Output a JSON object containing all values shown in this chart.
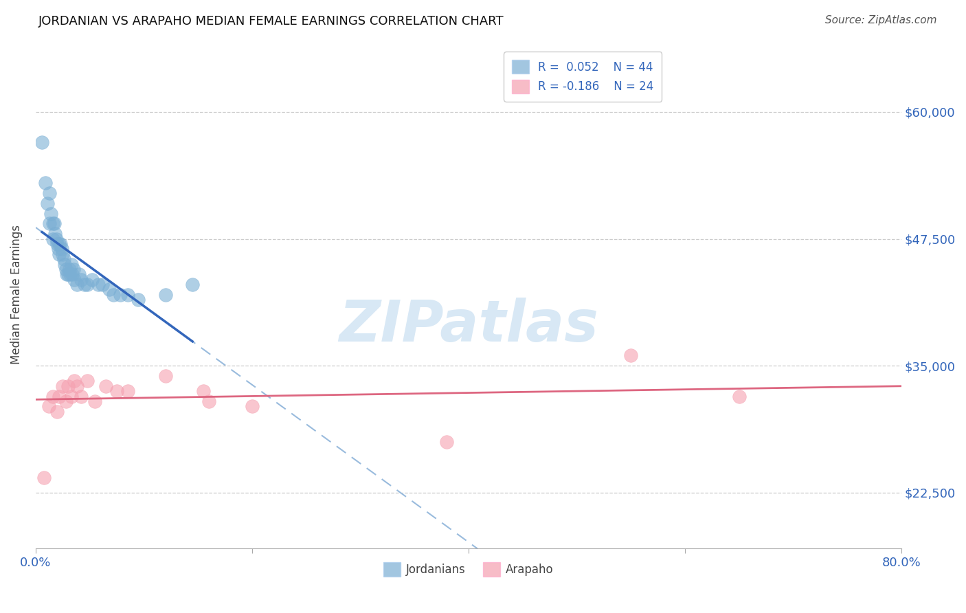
{
  "title": "JORDANIAN VS ARAPAHO MEDIAN FEMALE EARNINGS CORRELATION CHART",
  "source": "Source: ZipAtlas.com",
  "ylabel": "Median Female Earnings",
  "xlim": [
    0.0,
    0.8
  ],
  "ylim": [
    17000,
    67000
  ],
  "yticks": [
    22500,
    35000,
    47500,
    60000
  ],
  "ytick_labels": [
    "$22,500",
    "$35,000",
    "$47,500",
    "$60,000"
  ],
  "xticks": [
    0.0,
    0.2,
    0.4,
    0.6,
    0.8
  ],
  "xtick_labels": [
    "0.0%",
    "",
    "",
    "",
    "80.0%"
  ],
  "legend_r1": "R =  0.052",
  "legend_n1": "N = 44",
  "legend_r2": "R = -0.186",
  "legend_n2": "N = 24",
  "blue_color": "#7BAFD4",
  "pink_color": "#F5A0B0",
  "trend_blue_solid_color": "#3366BB",
  "trend_blue_dashed_color": "#99BBDD",
  "trend_pink_color": "#DD6680",
  "watermark_color": "#D8E8F5",
  "jordanian_x": [
    0.006,
    0.009,
    0.011,
    0.013,
    0.013,
    0.014,
    0.016,
    0.016,
    0.017,
    0.018,
    0.019,
    0.02,
    0.021,
    0.022,
    0.022,
    0.023,
    0.024,
    0.025,
    0.026,
    0.027,
    0.028,
    0.029,
    0.03,
    0.031,
    0.032,
    0.033,
    0.034,
    0.035,
    0.036,
    0.038,
    0.04,
    0.042,
    0.045,
    0.048,
    0.052,
    0.058,
    0.062,
    0.068,
    0.072,
    0.078,
    0.085,
    0.095,
    0.12,
    0.145
  ],
  "jordanian_y": [
    57000,
    53000,
    51000,
    52000,
    49000,
    50000,
    49000,
    47500,
    49000,
    48000,
    47500,
    47000,
    46500,
    47000,
    46000,
    47000,
    46500,
    46000,
    45500,
    45000,
    44500,
    44000,
    44000,
    44500,
    44000,
    45000,
    44000,
    44500,
    43500,
    43000,
    44000,
    43500,
    43000,
    43000,
    43500,
    43000,
    43000,
    42500,
    42000,
    42000,
    42000,
    41500,
    42000,
    43000
  ],
  "arapaho_x": [
    0.008,
    0.012,
    0.016,
    0.02,
    0.022,
    0.025,
    0.028,
    0.03,
    0.033,
    0.036,
    0.038,
    0.042,
    0.048,
    0.055,
    0.065,
    0.075,
    0.085,
    0.12,
    0.155,
    0.16,
    0.2,
    0.38,
    0.55,
    0.65
  ],
  "arapaho_y": [
    24000,
    31000,
    32000,
    30500,
    32000,
    33000,
    31500,
    33000,
    32000,
    33500,
    33000,
    32000,
    33500,
    31500,
    33000,
    32500,
    32500,
    34000,
    32500,
    31500,
    31000,
    27500,
    36000,
    32000
  ]
}
